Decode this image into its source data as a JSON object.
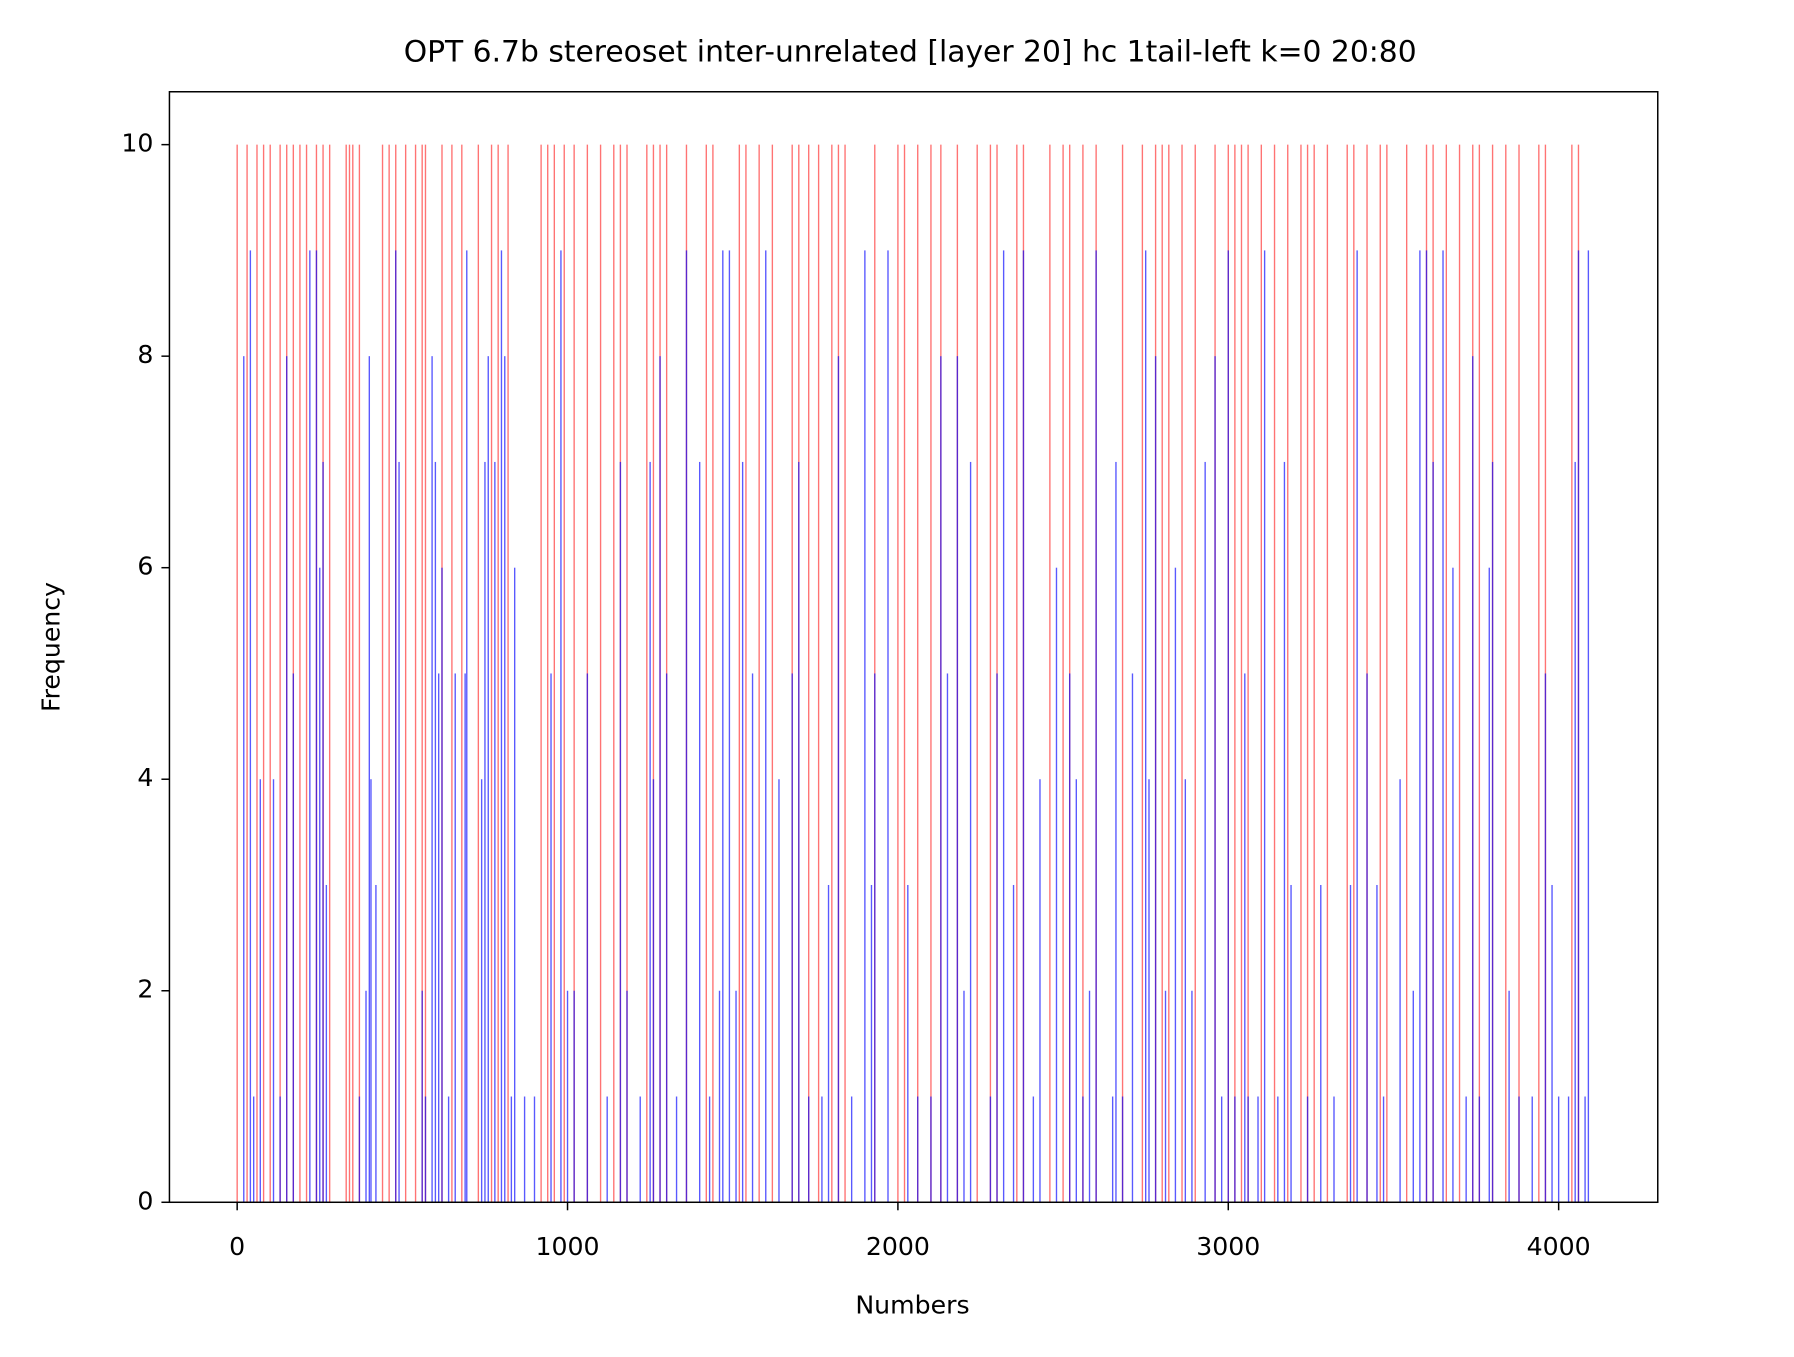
{
  "chart_data": {
    "type": "bar",
    "title": "OPT 6.7b stereoset inter-unrelated [layer 20] hc 1tail-left k=0 20:80",
    "x_label": "Numbers",
    "y_label": "Frequency",
    "xlim": [
      -205,
      4300
    ],
    "ylim": [
      0,
      10.5
    ],
    "xticks": [
      0,
      1000,
      2000,
      3000,
      4000
    ],
    "yticks": [
      0,
      2,
      4,
      6,
      8,
      10
    ],
    "series": [
      {
        "color": "#ff0000",
        "x": [
          0,
          30,
          60,
          80,
          100,
          130,
          150,
          170,
          190,
          210,
          240,
          260,
          280,
          330,
          340,
          350,
          370,
          440,
          460,
          480,
          510,
          540,
          560,
          570,
          620,
          650,
          680,
          730,
          770,
          790,
          820,
          920,
          940,
          960,
          990,
          1020,
          1060,
          1100,
          1140,
          1160,
          1180,
          1240,
          1260,
          1280,
          1300,
          1360,
          1420,
          1440,
          1520,
          1540,
          1580,
          1620,
          1680,
          1700,
          1730,
          1760,
          1800,
          1820,
          1840,
          1930,
          2000,
          2020,
          2060,
          2100,
          2130,
          2180,
          2240,
          2280,
          2300,
          2360,
          2380,
          2460,
          2500,
          2520,
          2560,
          2600,
          2680,
          2740,
          2780,
          2800,
          2820,
          2860,
          2900,
          2960,
          3000,
          3020,
          3040,
          3060,
          3100,
          3140,
          3180,
          3220,
          3240,
          3260,
          3300,
          3360,
          3380,
          3420,
          3460,
          3480,
          3540,
          3600,
          3620,
          3660,
          3700,
          3740,
          3760,
          3800,
          3840,
          3880,
          3940,
          3960,
          4040,
          4060
        ],
        "values": [
          10,
          10,
          10,
          10,
          10,
          10,
          10,
          10,
          10,
          10,
          10,
          10,
          10,
          10,
          10,
          10,
          10,
          10,
          10,
          10,
          10,
          10,
          10,
          10,
          10,
          10,
          10,
          10,
          10,
          10,
          10,
          10,
          10,
          10,
          10,
          10,
          10,
          10,
          10,
          10,
          10,
          10,
          10,
          10,
          10,
          10,
          10,
          10,
          10,
          10,
          10,
          10,
          10,
          10,
          10,
          10,
          10,
          10,
          10,
          10,
          10,
          10,
          10,
          10,
          10,
          10,
          10,
          10,
          10,
          10,
          10,
          10,
          10,
          10,
          10,
          10,
          10,
          10,
          10,
          10,
          10,
          10,
          10,
          10,
          10,
          10,
          10,
          10,
          10,
          10,
          10,
          10,
          10,
          10,
          10,
          10,
          10,
          10,
          10,
          10,
          10,
          10,
          10,
          10,
          10,
          10,
          10,
          10,
          10,
          10,
          10,
          10,
          10,
          10
        ]
      },
      {
        "color": "#0000ff",
        "x": [
          20,
          40,
          50,
          70,
          110,
          130,
          150,
          170,
          220,
          240,
          250,
          260,
          270,
          370,
          390,
          400,
          405,
          420,
          480,
          490,
          560,
          570,
          590,
          600,
          610,
          620,
          640,
          660,
          690,
          695,
          740,
          750,
          760,
          780,
          800,
          810,
          830,
          840,
          870,
          900,
          950,
          980,
          1000,
          1020,
          1060,
          1120,
          1160,
          1180,
          1220,
          1250,
          1260,
          1280,
          1300,
          1330,
          1360,
          1400,
          1430,
          1460,
          1470,
          1490,
          1510,
          1530,
          1560,
          1600,
          1640,
          1680,
          1700,
          1730,
          1770,
          1790,
          1820,
          1860,
          1900,
          1920,
          1930,
          1970,
          2030,
          2060,
          2100,
          2130,
          2150,
          2180,
          2200,
          2220,
          2280,
          2300,
          2320,
          2350,
          2380,
          2410,
          2430,
          2480,
          2520,
          2540,
          2560,
          2580,
          2600,
          2650,
          2660,
          2680,
          2710,
          2750,
          2760,
          2780,
          2810,
          2840,
          2870,
          2890,
          2930,
          2960,
          2980,
          3000,
          3020,
          3050,
          3060,
          3090,
          3110,
          3150,
          3170,
          3190,
          3240,
          3280,
          3320,
          3370,
          3390,
          3420,
          3450,
          3470,
          3520,
          3560,
          3580,
          3600,
          3620,
          3650,
          3680,
          3720,
          3740,
          3760,
          3790,
          3800,
          3850,
          3880,
          3920,
          3960,
          3980,
          4000,
          4030,
          4050,
          4060,
          4080,
          4090
        ],
        "values": [
          8,
          9,
          1,
          4,
          4,
          1,
          8,
          5,
          9,
          9,
          6,
          7,
          3,
          1,
          2,
          8,
          4,
          3,
          9,
          7,
          2,
          1,
          8,
          7,
          5,
          6,
          1,
          5,
          5,
          9,
          4,
          7,
          8,
          7,
          9,
          8,
          1,
          6,
          1,
          1,
          5,
          9,
          2,
          2,
          5,
          1,
          7,
          2,
          1,
          7,
          4,
          8,
          5,
          1,
          9,
          7,
          1,
          2,
          9,
          9,
          2,
          7,
          5,
          9,
          4,
          5,
          7,
          1,
          1,
          3,
          8,
          1,
          9,
          3,
          5,
          9,
          3,
          1,
          1,
          8,
          5,
          8,
          2,
          7,
          1,
          5,
          9,
          3,
          9,
          1,
          4,
          6,
          5,
          4,
          1,
          2,
          9,
          1,
          7,
          1,
          5,
          9,
          4,
          8,
          2,
          6,
          4,
          2,
          7,
          8,
          1,
          9,
          1,
          5,
          1,
          1,
          9,
          1,
          7,
          3,
          1,
          3,
          1,
          3,
          9,
          5,
          3,
          1,
          4,
          2,
          9,
          9,
          7,
          9,
          6,
          1,
          8,
          1,
          6,
          7,
          2,
          1,
          1,
          5,
          3,
          1,
          1,
          7,
          9,
          1,
          9
        ]
      }
    ]
  }
}
